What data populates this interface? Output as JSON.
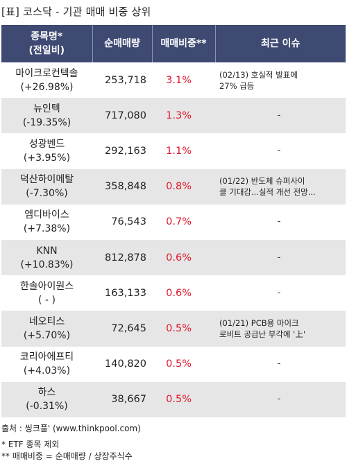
{
  "title": "[표] 코스닥 - 기관 매매 비중 상위",
  "headers": {
    "name_line1": "종목명*",
    "name_line2": "(전일비)",
    "volume": "순매매량",
    "ratio": "매매비중**",
    "issue": "최근 이슈"
  },
  "rows": [
    {
      "name": "마이크로컨텍솔",
      "change": "(+26.98%)",
      "volume": "253,718",
      "ratio": "3.1%",
      "issue1": "(02/13) 호실적 발표에",
      "issue2": "27% 급등"
    },
    {
      "name": "뉴인텍",
      "change": "(-19.35%)",
      "volume": "717,080",
      "ratio": "1.3%",
      "issue1": "-",
      "issue2": ""
    },
    {
      "name": "성광벤드",
      "change": "(+3.95%)",
      "volume": "292,163",
      "ratio": "1.1%",
      "issue1": "-",
      "issue2": ""
    },
    {
      "name": "덕산하이메탈",
      "change": "(-7.30%)",
      "volume": "358,848",
      "ratio": "0.8%",
      "issue1": "(01/22) 반도체 슈퍼사이",
      "issue2": "클 기대감...실적 개선 전망..."
    },
    {
      "name": "엠디바이스",
      "change": "(+7.38%)",
      "volume": "76,543",
      "ratio": "0.7%",
      "issue1": "-",
      "issue2": ""
    },
    {
      "name": "KNN",
      "change": "(+10.83%)",
      "volume": "812,878",
      "ratio": "0.6%",
      "issue1": "-",
      "issue2": ""
    },
    {
      "name": "한솔아이원스",
      "change": "( - )",
      "volume": "163,133",
      "ratio": "0.6%",
      "issue1": "-",
      "issue2": ""
    },
    {
      "name": "네오티스",
      "change": "(+5.70%)",
      "volume": "72,645",
      "ratio": "0.5%",
      "issue1": "(01/21) PCB용 마이크",
      "issue2": "로비트 공급난 부각에 '上'"
    },
    {
      "name": "코리아에프티",
      "change": "(+4.03%)",
      "volume": "140,820",
      "ratio": "0.5%",
      "issue1": "-",
      "issue2": ""
    },
    {
      "name": "하스",
      "change": "(-0.31%)",
      "volume": "38,667",
      "ratio": "0.5%",
      "issue1": "-",
      "issue2": ""
    }
  ],
  "footer": {
    "source": "출처 : 씽크풀' (www.thinkpool.com)",
    "note1": "* ETF 종목 제외",
    "note2": "** 매매비중 = 순매매량 / 상장주식수"
  }
}
